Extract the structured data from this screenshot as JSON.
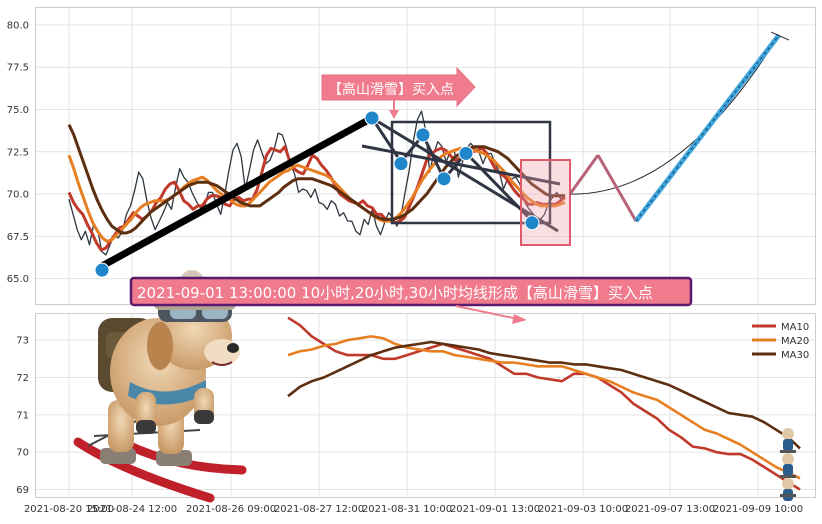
{
  "chart_data": [
    {
      "type": "line",
      "panel": "price",
      "ylim": [
        63.5,
        81.0
      ],
      "yticks": [
        65.0,
        67.5,
        70.0,
        72.5,
        75.0,
        77.5,
        80.0
      ],
      "grid": true,
      "series": [
        {
          "role": "price",
          "color": "#2f3640",
          "values": [
            69.7,
            68.8,
            67.9,
            67.3,
            67.8,
            67.0,
            68.2,
            67.9,
            66.6,
            66.4,
            67.0,
            67.6,
            67.4,
            67.8,
            68.8,
            69.3,
            70.2,
            71.3,
            70.9,
            69.6,
            68.6,
            67.9,
            68.4,
            68.9,
            69.5,
            69.1,
            70.4,
            71.5,
            71.0,
            70.7,
            70.1,
            69.6,
            69.2,
            69.2,
            70.1,
            70.1,
            69.4,
            68.8,
            70.0,
            71.4,
            72.6,
            73.0,
            72.2,
            70.3,
            71.4,
            72.6,
            73.2,
            72.5,
            71.8,
            72.0,
            72.6,
            73.6,
            73.5,
            72.8,
            71.8,
            71.2,
            70.1,
            70.3,
            70.2,
            69.8,
            70.3,
            69.5,
            69.4,
            69.1,
            69.6,
            69.4,
            68.7,
            68.9,
            68.4,
            68.4,
            67.8,
            67.6,
            68.5,
            68.2,
            69.1,
            68.1,
            67.6,
            68.3,
            68.9,
            68.6,
            68.1,
            68.7,
            70.1,
            71.4,
            73.1,
            74.4,
            74.9,
            73.8,
            71.3,
            72.4,
            73.1,
            72.8,
            71.9,
            72.5,
            72.6,
            71.0,
            71.9,
            72.7,
            73.0,
            72.7,
            72.5,
            71.8,
            72.4,
            72.4,
            71.8,
            71.3,
            70.3,
            70.9,
            70.9,
            71.0,
            70.6,
            69.6,
            69.2,
            68.9,
            68.6,
            68.5,
            68.8,
            69.5,
            69.8,
            70.1,
            69.7,
            69.9
          ]
        },
        {
          "role": "MA10",
          "color": "#c0392b",
          "values": [
            70.1,
            69.5,
            69.1,
            68.8,
            68.2,
            67.7,
            67.1,
            66.7,
            66.8,
            67.2,
            67.6,
            68.0,
            68.1,
            68.5,
            68.9,
            68.7,
            68.5,
            68.7,
            69.0,
            69.5,
            69.8,
            70.3,
            70.6,
            70.7,
            70.2,
            69.6,
            69.4,
            69.1,
            69.3,
            69.3,
            69.7,
            69.9,
            69.9,
            69.8,
            69.4,
            69.3,
            69.7,
            69.8,
            69.6,
            69.7,
            69.7,
            70.3,
            71.3,
            72.3,
            72.7,
            72.6,
            72.5,
            72.8,
            72.0,
            71.5,
            71.3,
            71.2,
            71.7,
            72.3,
            72.1,
            71.7,
            71.4,
            71.0,
            70.5,
            70.0,
            69.8,
            69.6,
            69.5,
            69.4,
            69.6,
            69.3,
            69.2,
            68.8,
            68.8,
            68.5,
            68.4,
            68.3,
            68.4,
            68.6,
            69.2,
            69.8,
            70.5,
            71.3,
            72.1,
            72.4,
            72.6,
            72.7,
            72.6,
            72.3,
            72.0,
            72.1,
            72.3,
            72.4,
            72.5,
            72.6,
            72.7,
            72.4,
            71.9,
            71.4,
            71.2,
            71.0,
            70.6,
            70.2,
            69.9,
            69.7,
            69.4,
            69.4,
            69.5,
            69.4,
            69.4,
            69.4,
            69.4,
            69.6,
            69.8
          ]
        },
        {
          "role": "MA20",
          "color": "#e67e22",
          "values": [
            72.3,
            71.5,
            70.6,
            69.8,
            69.0,
            68.3,
            67.8,
            67.4,
            67.2,
            67.3,
            67.6,
            67.9,
            68.2,
            68.5,
            68.9,
            69.2,
            69.4,
            69.5,
            69.6,
            69.6,
            69.6,
            69.7,
            69.9,
            70.1,
            70.4,
            70.6,
            70.8,
            70.9,
            71.0,
            70.8,
            70.5,
            70.2,
            70.0,
            69.8,
            69.6,
            69.4,
            69.3,
            69.3,
            69.5,
            69.8,
            70.1,
            70.4,
            70.7,
            70.9,
            71.1,
            71.3,
            71.4,
            71.6,
            71.7,
            71.6,
            71.5,
            71.4,
            71.3,
            71.2,
            71.1,
            70.9,
            70.6,
            70.3,
            70.0,
            69.7,
            69.5,
            69.3,
            69.1,
            68.9,
            68.7,
            68.5,
            68.4,
            68.4,
            68.5,
            68.7,
            69.0,
            69.4,
            69.8,
            70.3,
            70.8,
            71.2,
            71.6,
            71.9,
            72.2,
            72.4,
            72.5,
            72.6,
            72.7,
            72.7,
            72.7,
            72.6,
            72.5,
            72.4,
            72.2,
            72.0,
            71.7,
            71.4,
            71.1,
            70.7,
            70.4,
            70.1,
            69.8,
            69.6,
            69.4,
            69.3,
            69.3,
            69.3,
            69.3,
            69.4,
            69.5
          ]
        },
        {
          "role": "MA30",
          "color": "#5d2e0f",
          "values": [
            74.1,
            73.5,
            72.7,
            71.9,
            71.1,
            70.3,
            69.6,
            69.0,
            68.5,
            68.1,
            67.9,
            67.7,
            67.7,
            67.8,
            68.0,
            68.3,
            68.6,
            68.9,
            69.1,
            69.3,
            69.5,
            69.7,
            69.9,
            70.1,
            70.3,
            70.5,
            70.6,
            70.7,
            70.7,
            70.7,
            70.6,
            70.5,
            70.3,
            70.1,
            69.9,
            69.7,
            69.5,
            69.4,
            69.3,
            69.3,
            69.3,
            69.5,
            69.7,
            69.9,
            70.1,
            70.4,
            70.6,
            70.8,
            70.9,
            70.9,
            70.9,
            70.9,
            70.8,
            70.7,
            70.6,
            70.5,
            70.3,
            70.1,
            69.9,
            69.7,
            69.5,
            69.3,
            69.1,
            68.9,
            68.7,
            68.6,
            68.5,
            68.5,
            68.5,
            68.6,
            68.7,
            68.9,
            69.1,
            69.4,
            69.7,
            70.0,
            70.4,
            70.8,
            71.2,
            71.6,
            71.9,
            72.2,
            72.4,
            72.6,
            72.7,
            72.8,
            72.8,
            72.8,
            72.7,
            72.6,
            72.5,
            72.3,
            72.1,
            71.8,
            71.5,
            71.2,
            70.9,
            70.6,
            70.4,
            70.2,
            70.0,
            69.9,
            69.9,
            69.9,
            69.9
          ]
        }
      ],
      "points": [
        65.5,
        74.5,
        71.8,
        73.5,
        70.9,
        72.4,
        68.3
      ],
      "projection": {
        "path": [
          70.0,
          72.3,
          68.4,
          79.4
        ]
      },
      "annotations": {
        "signal_label": "【高山滑雪】买入点",
        "banner_text": "2021-09-01 13:00:00 10小时,20小时,30小时均线形成【高山滑雪】买入点"
      }
    },
    {
      "type": "line",
      "panel": "moving-averages",
      "ylim": [
        68.8,
        73.7
      ],
      "yticks": [
        69,
        70,
        71,
        72,
        73
      ],
      "grid": true,
      "legend": "top-right",
      "series": [
        {
          "name": "MA10",
          "color": "#c0392b",
          "values": [
            73.6,
            73.4,
            73.1,
            72.9,
            72.7,
            72.6,
            72.6,
            72.6,
            72.5,
            72.5,
            72.6,
            72.7,
            72.8,
            72.9,
            72.8,
            72.7,
            72.6,
            72.5,
            72.3,
            72.1,
            72.1,
            72.0,
            71.95,
            71.9,
            72.1,
            72.1,
            72.0,
            71.8,
            71.6,
            71.3,
            71.1,
            70.9,
            70.6,
            70.4,
            70.15,
            70.1,
            70.0,
            69.95,
            69.95,
            69.8,
            69.6,
            69.4,
            69.2,
            69.0
          ]
        },
        {
          "name": "MA20",
          "color": "#e67e22",
          "values": [
            72.6,
            72.7,
            72.75,
            72.85,
            72.9,
            73.0,
            73.05,
            73.1,
            73.05,
            72.9,
            72.8,
            72.75,
            72.7,
            72.7,
            72.6,
            72.55,
            72.5,
            72.45,
            72.4,
            72.4,
            72.35,
            72.3,
            72.3,
            72.3,
            72.2,
            72.1,
            72.0,
            71.9,
            71.75,
            71.6,
            71.5,
            71.4,
            71.2,
            71.0,
            70.8,
            70.6,
            70.5,
            70.35,
            70.2,
            70.0,
            69.8,
            69.6,
            69.45,
            69.3
          ]
        },
        {
          "name": "MA30",
          "color": "#5d2e0f",
          "values": [
            71.5,
            71.75,
            71.9,
            72.0,
            72.15,
            72.3,
            72.45,
            72.6,
            72.7,
            72.8,
            72.85,
            72.9,
            72.95,
            72.9,
            72.85,
            72.8,
            72.75,
            72.65,
            72.6,
            72.55,
            72.5,
            72.45,
            72.4,
            72.4,
            72.35,
            72.35,
            72.3,
            72.25,
            72.2,
            72.1,
            72.0,
            71.9,
            71.8,
            71.65,
            71.5,
            71.35,
            71.2,
            71.05,
            71.0,
            70.95,
            70.8,
            70.6,
            70.4,
            70.1
          ]
        }
      ]
    }
  ],
  "xticks": [
    "2021-08-20 15:00",
    "2021-08-24 12:00",
    "2021-08-26 09:00",
    "2021-08-27 12:00",
    "2021-08-31 10:00",
    "2021-09-01 13:00",
    "2021-09-03 10:00",
    "2021-09-07 13:00",
    "2021-09-09 10:00"
  ],
  "legend_labels": [
    "MA10",
    "MA20",
    "MA30"
  ],
  "colors": {
    "banner_bg": "#f07b8c",
    "banner_border": "#5b1a6e",
    "signal_box": "#f2a0aa",
    "marker": "#1f87c9",
    "projection_up": "#3fa7e0",
    "projection_down": "#b76277"
  },
  "decorations": {
    "mascot": "ski-dog-illustration",
    "skier_icon": "mini-skier-icon"
  }
}
